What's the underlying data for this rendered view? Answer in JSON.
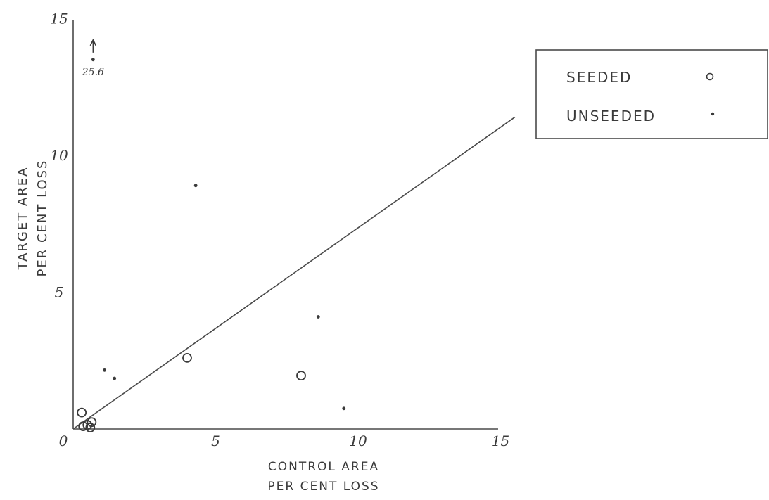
{
  "chart_data": {
    "type": "scatter",
    "xlabel": [
      "CONTROL AREA",
      "PER CENT LOSS"
    ],
    "ylabel": [
      "TARGET AREA",
      "PER CENT LOSS"
    ],
    "xlim": [
      0,
      15
    ],
    "ylim": [
      0,
      15
    ],
    "x_ticks": [
      {
        "value": 0,
        "label": "0"
      },
      {
        "value": 5,
        "label": "5"
      },
      {
        "value": 10,
        "label": "10"
      },
      {
        "value": 15,
        "label": "15"
      }
    ],
    "y_ticks": [
      {
        "value": 5,
        "label": "5"
      },
      {
        "value": 10,
        "label": "10"
      },
      {
        "value": 15,
        "label": "15"
      }
    ],
    "legend_position": "top-right",
    "series": [
      {
        "name": "SEEDED",
        "marker": "open-circle",
        "points": [
          {
            "x": 0.3,
            "y": 0.6
          },
          {
            "x": 0.35,
            "y": 0.1
          },
          {
            "x": 0.5,
            "y": 0.15
          },
          {
            "x": 0.6,
            "y": 0.05
          },
          {
            "x": 0.65,
            "y": 0.25
          },
          {
            "x": 4.0,
            "y": 2.6
          },
          {
            "x": 8.0,
            "y": 1.95
          }
        ]
      },
      {
        "name": "UNSEEDED",
        "marker": "dot",
        "points": [
          {
            "x": 1.1,
            "y": 2.15
          },
          {
            "x": 1.45,
            "y": 1.85
          },
          {
            "x": 4.3,
            "y": 8.9
          },
          {
            "x": 8.6,
            "y": 4.1
          },
          {
            "x": 9.5,
            "y": 0.75
          }
        ]
      }
    ],
    "reference_line": {
      "x": [
        0,
        15.5
      ],
      "y": [
        0,
        11.4
      ]
    },
    "annotations": [
      {
        "text": "25.6",
        "x": 0.7,
        "y": 13.5,
        "note": "off-scale point shown with up arrow"
      }
    ]
  }
}
